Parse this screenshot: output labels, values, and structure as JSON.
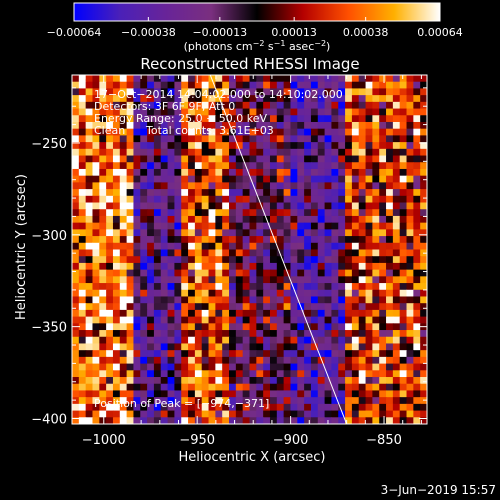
{
  "chart_data": {
    "type": "heatmap",
    "title": "Reconstructed RHESSI Image",
    "xlabel": "Heliocentric X (arcsec)",
    "ylabel": "Heliocentric Y (arcsec)",
    "xlim": [
      -1017,
      -827
    ],
    "ylim": [
      -403,
      -213
    ],
    "x_ticks": [
      -1000,
      -950,
      -900,
      -850
    ],
    "x_tick_labels": [
      "−1000",
      "−950",
      "−900",
      "−850"
    ],
    "y_ticks": [
      -250,
      -300,
      -350,
      -400
    ],
    "y_tick_labels": [
      "−250",
      "−300",
      "−350",
      "−400"
    ],
    "colorbar": {
      "range": [
        -0.00064,
        0.00064
      ],
      "ticks": [
        -0.00064,
        -0.00038,
        -0.00013,
        0.00013,
        0.00038,
        0.00064
      ],
      "tick_labels": [
        "−0.00064",
        "−0.00038",
        "−0.00013",
        "0.00013",
        "0.00038",
        "0.00064"
      ],
      "unit_main": "(photons cm",
      "unit_sup1": "−2",
      "unit_mid1": " s",
      "unit_sup2": "−1",
      "unit_mid2": " asec",
      "unit_sup3": "−2",
      "unit_end": ")"
    },
    "annotations": {
      "time": "17−Oct−2014 14:04:02.000 to 14:10:02.000",
      "detectors": "Detectors: 3F 6F 9F, Att 0",
      "energy": "Energy Range: 25.0 − 50.0 keV",
      "clean_label": "Clean",
      "total_counts": "Total counts: 3.61E+03",
      "peak": "Position of Peak = [−974,−371]"
    },
    "limb_line": {
      "points": [
        [
          -943,
          -213
        ],
        [
          -870,
          -403
        ]
      ]
    },
    "peak_position": [
      -974,
      -371
    ],
    "grid": false,
    "legend": "none",
    "colormap": [
      "#0000ff",
      "#4a20b8",
      "#682499",
      "#7a2f7f",
      "#000000",
      "#b40000",
      "#ff5000",
      "#ffb000",
      "#ffffff"
    ],
    "region_levels": [
      {
        "x_range": [
          -1017,
          -985
        ],
        "level": 0.8
      },
      {
        "x_range": [
          -985,
          -960
        ],
        "level": 0.32
      },
      {
        "x_range": [
          -960,
          -932
        ],
        "level": 0.72
      },
      {
        "x_range": [
          -932,
          -900
        ],
        "level": 0.45
      },
      {
        "x_range": [
          -900,
          -872
        ],
        "level": 0.28
      },
      {
        "x_range": [
          -872,
          -827
        ],
        "level": 0.68
      }
    ]
  },
  "footer": {
    "date": "3−Jun−2019 15:57"
  }
}
